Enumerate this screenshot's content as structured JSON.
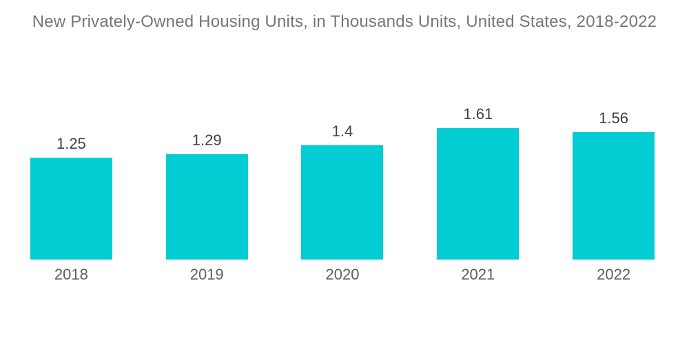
{
  "title": "New Privately-Owned Housing Units, in Thousands Units, United States, 2018-2022",
  "colors": {
    "bar": "#03ccd2",
    "title_text": "#75767a",
    "value_text": "#404144",
    "year_text": "#5d5e61",
    "background": "#ffffff"
  },
  "chart_data": {
    "type": "bar",
    "title": "New Privately-Owned Housing Units, in Thousands Units, United States, 2018-2022",
    "categories": [
      "2018",
      "2019",
      "2020",
      "2021",
      "2022"
    ],
    "values": [
      1.25,
      1.29,
      1.4,
      1.61,
      1.56
    ],
    "value_labels": [
      "1.25",
      "1.29",
      "1.4",
      "1.61",
      "1.56"
    ],
    "xlabel": "",
    "ylabel": "",
    "ylim": [
      0,
      1.61
    ],
    "grid": false,
    "legend": "none",
    "axes_visible": false,
    "bar_pixels_per_unit": 118.5
  }
}
